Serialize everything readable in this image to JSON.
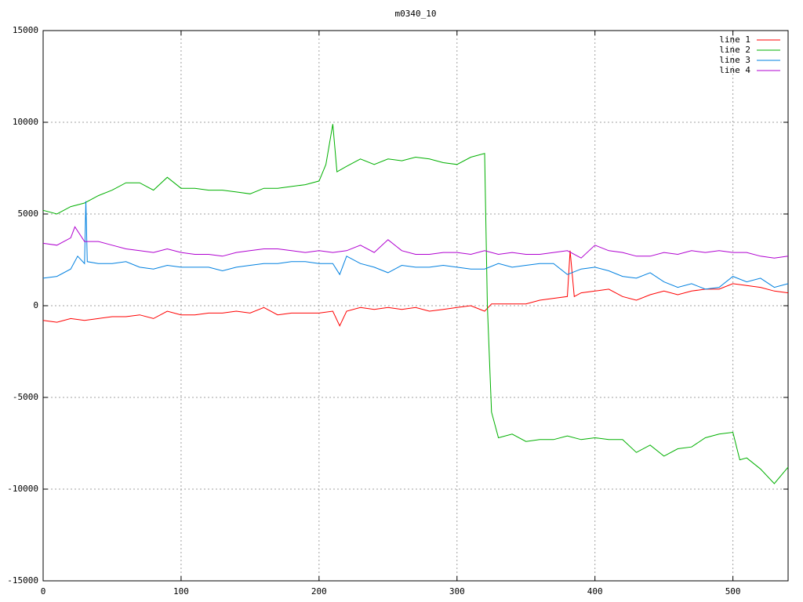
{
  "chart_data": {
    "type": "line",
    "title": "m0340_10",
    "xlim": [
      0,
      540
    ],
    "xticks": [
      0,
      100,
      200,
      300,
      400,
      500
    ],
    "ylim": [
      -15000,
      15000
    ],
    "yticks": [
      -15000,
      -10000,
      -5000,
      0,
      5000,
      10000,
      15000
    ],
    "grid": true,
    "legend": "top-right",
    "series": [
      {
        "name": "line 1",
        "color": "#ff0000",
        "x": [
          0,
          10,
          20,
          30,
          40,
          50,
          60,
          70,
          80,
          90,
          100,
          110,
          120,
          130,
          140,
          150,
          160,
          170,
          180,
          190,
          200,
          210,
          215,
          220,
          230,
          240,
          250,
          260,
          270,
          280,
          290,
          300,
          310,
          320,
          325,
          330,
          340,
          350,
          360,
          370,
          380,
          382,
          385,
          390,
          400,
          410,
          420,
          430,
          440,
          450,
          460,
          470,
          480,
          490,
          500,
          510,
          520,
          530,
          540
        ],
        "values": [
          -800,
          -900,
          -700,
          -800,
          -700,
          -600,
          -600,
          -500,
          -700,
          -300,
          -500,
          -500,
          -400,
          -400,
          -300,
          -400,
          -100,
          -500,
          -400,
          -400,
          -400,
          -300,
          -1100,
          -300,
          -100,
          -200,
          -100,
          -200,
          -100,
          -300,
          -200,
          -100,
          0,
          -300,
          100,
          100,
          100,
          100,
          300,
          400,
          500,
          3000,
          500,
          700,
          800,
          900,
          500,
          300,
          600,
          800,
          600,
          800,
          900,
          900,
          1200,
          1100,
          1000,
          800,
          700
        ]
      },
      {
        "name": "line 2",
        "color": "#00b000",
        "x": [
          0,
          10,
          20,
          30,
          40,
          50,
          60,
          70,
          80,
          90,
          100,
          110,
          120,
          130,
          140,
          150,
          160,
          170,
          180,
          190,
          200,
          205,
          210,
          213,
          220,
          230,
          240,
          250,
          260,
          270,
          280,
          290,
          300,
          310,
          320,
          322,
          325,
          330,
          340,
          350,
          360,
          370,
          380,
          390,
          400,
          410,
          420,
          430,
          440,
          450,
          460,
          470,
          480,
          490,
          500,
          505,
          510,
          520,
          530,
          540
        ],
        "values": [
          5200,
          5000,
          5400,
          5600,
          6000,
          6300,
          6700,
          6700,
          6300,
          7000,
          6400,
          6400,
          6300,
          6300,
          6200,
          6100,
          6400,
          6400,
          6500,
          6600,
          6800,
          7700,
          9900,
          7300,
          7600,
          8000,
          7700,
          8000,
          7900,
          8100,
          8000,
          7800,
          7700,
          8100,
          8300,
          0,
          -5800,
          -7200,
          -7000,
          -7400,
          -7300,
          -7300,
          -7100,
          -7300,
          -7200,
          -7300,
          -7300,
          -8000,
          -7600,
          -8200,
          -7800,
          -7700,
          -7200,
          -7000,
          -6900,
          -8400,
          -8300,
          -8900,
          -9700,
          -8800
        ]
      },
      {
        "name": "line 3",
        "color": "#0080e0",
        "x": [
          0,
          10,
          20,
          25,
          30,
          31,
          32,
          40,
          50,
          60,
          70,
          80,
          90,
          100,
          110,
          120,
          130,
          140,
          150,
          160,
          170,
          180,
          190,
          200,
          210,
          215,
          220,
          230,
          240,
          250,
          260,
          270,
          280,
          290,
          300,
          310,
          320,
          330,
          340,
          350,
          360,
          370,
          380,
          390,
          400,
          410,
          420,
          430,
          440,
          450,
          460,
          470,
          480,
          490,
          500,
          510,
          520,
          530,
          540
        ],
        "values": [
          1500,
          1600,
          2000,
          2700,
          2300,
          5700,
          2400,
          2300,
          2300,
          2400,
          2100,
          2000,
          2200,
          2100,
          2100,
          2100,
          1900,
          2100,
          2200,
          2300,
          2300,
          2400,
          2400,
          2300,
          2300,
          1700,
          2700,
          2300,
          2100,
          1800,
          2200,
          2100,
          2100,
          2200,
          2100,
          2000,
          2000,
          2300,
          2100,
          2200,
          2300,
          2300,
          1700,
          2000,
          2100,
          1900,
          1600,
          1500,
          1800,
          1300,
          1000,
          1200,
          900,
          1000,
          1600,
          1300,
          1500,
          1000,
          1200
        ]
      },
      {
        "name": "line 4",
        "color": "#b000d0",
        "x": [
          0,
          10,
          20,
          23,
          30,
          40,
          50,
          60,
          70,
          80,
          90,
          100,
          110,
          120,
          130,
          140,
          150,
          160,
          170,
          180,
          190,
          200,
          210,
          220,
          230,
          240,
          250,
          260,
          270,
          280,
          290,
          300,
          310,
          320,
          330,
          340,
          350,
          360,
          370,
          380,
          390,
          400,
          410,
          420,
          430,
          440,
          450,
          460,
          470,
          480,
          490,
          500,
          510,
          520,
          530,
          540
        ],
        "values": [
          3400,
          3300,
          3700,
          4300,
          3500,
          3500,
          3300,
          3100,
          3000,
          2900,
          3100,
          2900,
          2800,
          2800,
          2700,
          2900,
          3000,
          3100,
          3100,
          3000,
          2900,
          3000,
          2900,
          3000,
          3300,
          2900,
          3600,
          3000,
          2800,
          2800,
          2900,
          2900,
          2800,
          3000,
          2800,
          2900,
          2800,
          2800,
          2900,
          3000,
          2600,
          3300,
          3000,
          2900,
          2700,
          2700,
          2900,
          2800,
          3000,
          2900,
          3000,
          2900,
          2900,
          2700,
          2600,
          2700
        ]
      }
    ]
  }
}
